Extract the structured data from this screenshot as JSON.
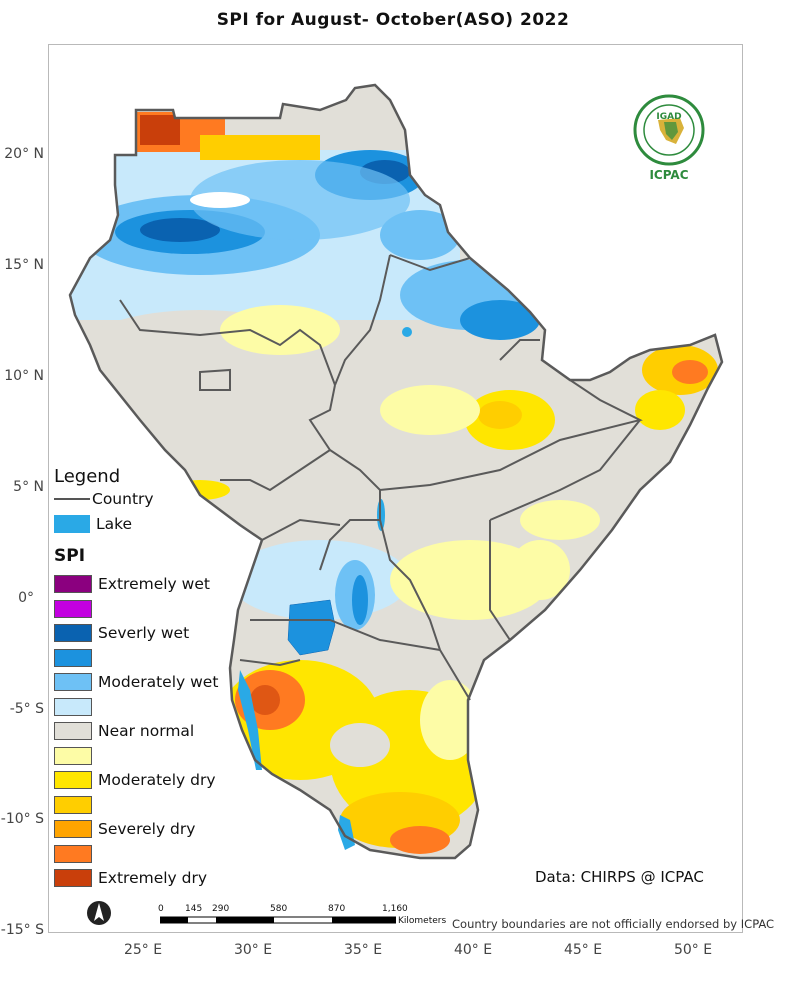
{
  "title": "SPI   for    August- October(ASO) 2022",
  "lat_labels": [
    "20° N",
    "15° N",
    "10° N",
    "5° N",
    "0°",
    "-5° S",
    "-10° S",
    "-15° S"
  ],
  "lon_labels": [
    "25° E",
    "30° E",
    "35° E",
    "40° E",
    "45° E",
    "50° E"
  ],
  "legend": {
    "title": "Legend",
    "country": "Country",
    "lake": "Lake",
    "spi_title": "SPI",
    "classes": [
      {
        "label": "Extremely wet",
        "color": "#8b007f"
      },
      {
        "label": "",
        "color": "#c300e0"
      },
      {
        "label": "Severly wet",
        "color": "#0a62b0"
      },
      {
        "label": "",
        "color": "#1c92de"
      },
      {
        "label": "Moderately wet",
        "color": "#6ec1f5"
      },
      {
        "label": "",
        "color": "#c8e9fb"
      },
      {
        "label": "Near normal",
        "color": "#e1dfd8"
      },
      {
        "label": "",
        "color": "#fdfca6"
      },
      {
        "label": "Moderately dry",
        "color": "#ffe600"
      },
      {
        "label": "",
        "color": "#ffce00"
      },
      {
        "label": "Severely dry",
        "color": "#ffa400"
      },
      {
        "label": "",
        "color": "#ff7a21"
      },
      {
        "label": "Extremely dry",
        "color": "#c93f0b"
      }
    ]
  },
  "scale": {
    "labels": [
      "0",
      "145",
      "290",
      "580",
      "870",
      "1,160"
    ],
    "unit": "Kilometers"
  },
  "credit": "Data: CHIRPS @ ICPAC",
  "disclaimer": "Country boundaries are not officially endorsed by ICPAC",
  "logo": {
    "top_text": "IGAD",
    "bottom_text": "ICPAC"
  },
  "north_arrow": "N"
}
